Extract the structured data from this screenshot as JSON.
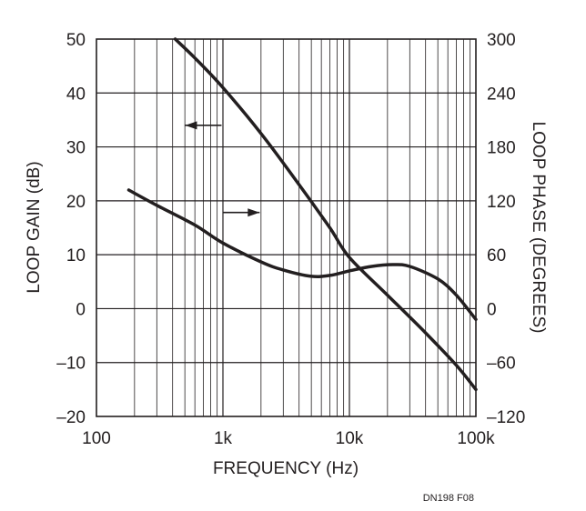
{
  "chart_data": {
    "type": "line",
    "x_scale": "log",
    "xlim": [
      100,
      100000
    ],
    "ylim": [
      -20,
      50
    ],
    "y2lim": [
      -120,
      300
    ],
    "grid": true,
    "xlabel": "FREQUENCY (Hz)",
    "ylabel": "LOOP GAIN (dB)",
    "y2label": "LOOP PHASE (DEGREES)",
    "x_ticks": [
      {
        "value": 100,
        "label": "100"
      },
      {
        "value": 1000,
        "label": "1k"
      },
      {
        "value": 10000,
        "label": "10k"
      },
      {
        "value": 100000,
        "label": "100k"
      }
    ],
    "y_ticks": [
      {
        "value": 50,
        "label": "50"
      },
      {
        "value": 40,
        "label": "40"
      },
      {
        "value": 30,
        "label": "30"
      },
      {
        "value": 20,
        "label": "20"
      },
      {
        "value": 10,
        "label": "10"
      },
      {
        "value": 0,
        "label": "0"
      },
      {
        "value": -10,
        "label": "–10"
      },
      {
        "value": -20,
        "label": "–20"
      }
    ],
    "y2_ticks": [
      {
        "value": 300,
        "label": "300"
      },
      {
        "value": 240,
        "label": "240"
      },
      {
        "value": 180,
        "label": "180"
      },
      {
        "value": 120,
        "label": "120"
      },
      {
        "value": 60,
        "label": "60"
      },
      {
        "value": 0,
        "label": "0"
      },
      {
        "value": -60,
        "label": "–60"
      },
      {
        "value": -120,
        "label": "–120"
      }
    ],
    "series": [
      {
        "axis": "left",
        "arrow": "left",
        "arrow_at": {
          "x": 700,
          "y": 34
        },
        "points": [
          {
            "x": 420,
            "y": 50
          },
          {
            "x": 600,
            "y": 46.5
          },
          {
            "x": 1000,
            "y": 41
          },
          {
            "x": 2000,
            "y": 32.5
          },
          {
            "x": 4000,
            "y": 23
          },
          {
            "x": 7000,
            "y": 15
          },
          {
            "x": 10000,
            "y": 9.5
          },
          {
            "x": 20000,
            "y": 2.5
          },
          {
            "x": 40000,
            "y": -4.5
          },
          {
            "x": 70000,
            "y": -10.5
          },
          {
            "x": 100000,
            "y": -15
          }
        ]
      },
      {
        "axis": "right",
        "arrow": "right",
        "arrow_at": {
          "x": 1400,
          "y2": 107
        },
        "points": [
          {
            "x": 180,
            "y2": 132
          },
          {
            "x": 300,
            "y2": 115
          },
          {
            "x": 600,
            "y2": 93
          },
          {
            "x": 1000,
            "y2": 73
          },
          {
            "x": 2000,
            "y2": 52
          },
          {
            "x": 3000,
            "y2": 43
          },
          {
            "x": 5000,
            "y2": 36
          },
          {
            "x": 7000,
            "y2": 37
          },
          {
            "x": 10000,
            "y2": 42
          },
          {
            "x": 15000,
            "y2": 47
          },
          {
            "x": 22000,
            "y2": 49
          },
          {
            "x": 30000,
            "y2": 47
          },
          {
            "x": 50000,
            "y2": 33
          },
          {
            "x": 70000,
            "y2": 15
          },
          {
            "x": 100000,
            "y2": -12
          }
        ]
      }
    ]
  },
  "footnote": "DN198 F08"
}
